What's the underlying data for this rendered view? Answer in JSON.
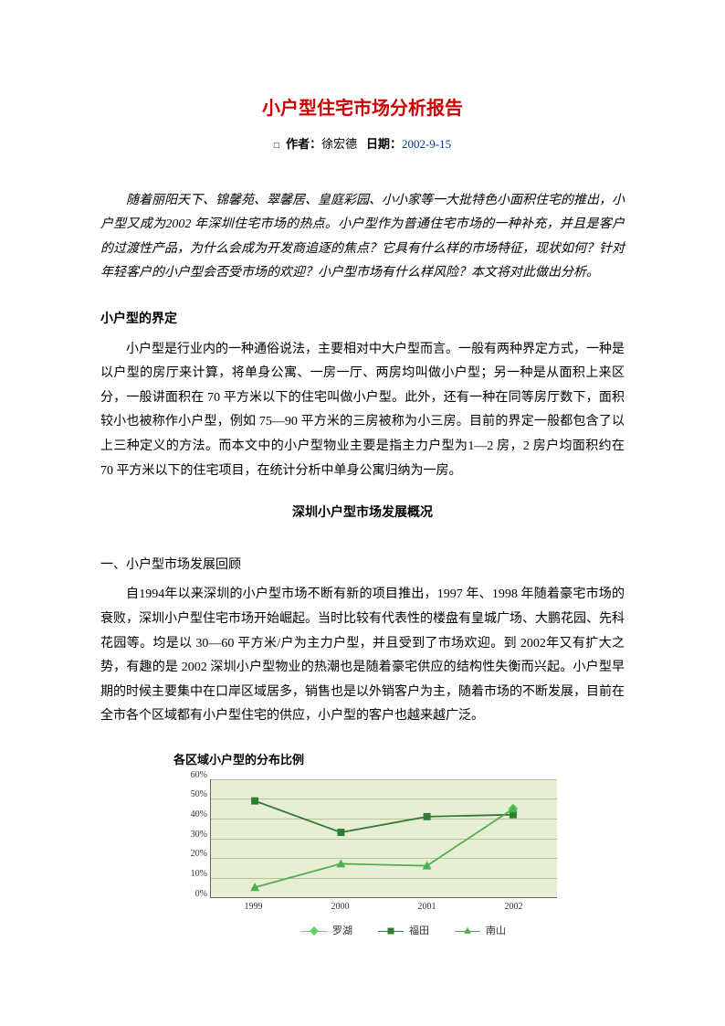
{
  "title": "小户型住宅市场分析报告",
  "byline": {
    "bullet": "□",
    "author_label": "作者：",
    "author": "徐宏德",
    "date_label": "日期：",
    "date": "2002-9-15"
  },
  "intro": "随着丽阳天下、锦馨苑、翠馨居、皇庭彩园、小小家等一大批特色小面积住宅的推出，小户型又成为2002 年深圳住宅市场的热点。小户型作为普通住宅市场的一种补充，并且是客户的过渡性产品，为什么会成为开发商追逐的焦点？它具有什么样的市场特征，现状如何？针对年轻客户的小户型会否受市场的欢迎？小户型市场有什么样风险？本文将对此做出分析。",
  "h1": "小户型的界定",
  "p1": "小户型是行业内的一种通俗说法，主要相对中大户型而言。一般有两种界定方式，一种是以户型的房厅来计算，将单身公寓、一房一厅、两房均叫做小户型；另一种是从面积上来区分，一般讲面积在 70 平方米以下的住宅叫做小户型。此外，还有一种在同等房厅数下，面积较小也被称作小户型，例如 75—90 平方米的三房被称为小三房。目前的界定一般都包含了以上三种定义的方法。而本文中的小户型物业主要是指主力户型为1—2 房，2 房户均面积约在 70 平方米以下的住宅项目，在统计分析中单身公寓归纳为一房。",
  "center_heading": "深圳小户型市场发展概况",
  "h2": "一、小户型市场发展回顾",
  "p2": "自1994年以来深圳的小户型市场不断有新的项目推出，1997 年、1998 年随着豪宅市场的衰败，深圳小户型住宅市场开始崛起。当时比较有代表性的楼盘有皇城广场、大鹏花园、先科花园等。均是以 30—60 平方米/户为主力户型，并且受到了市场欢迎。到 2002年又有扩大之势，有趣的是 2002 深圳小户型物业的热潮也是随着豪宅供应的结构性失衡而兴起。小户型早期的时候主要集中在口岸区域居多，销售也是以外销客户为主，随着市场的不断发展，目前在全市各个区域都有小户型住宅的供应，小户型的客户也越来越广泛。",
  "chart": {
    "title": "各区域小户型的分布比例",
    "type": "line",
    "plot_bg": "#e8eed4",
    "grid_color": "#b8c29a",
    "x_categories": [
      "1999",
      "2000",
      "2001",
      "2002"
    ],
    "y": {
      "min": 0,
      "max": 60,
      "step": 10,
      "suffix": "%"
    },
    "series": [
      {
        "name": "罗湖",
        "color": "#5fd35f",
        "marker": "diamond",
        "values": [
          null,
          null,
          null,
          45
        ]
      },
      {
        "name": "福田",
        "color": "#2e7d32",
        "marker": "square",
        "values": [
          49,
          33,
          41,
          42
        ]
      },
      {
        "name": "南山",
        "color": "#4caf50",
        "marker": "triangle",
        "values": [
          5,
          17,
          16,
          45
        ]
      }
    ],
    "legend_labels": {
      "luohu": "罗湖",
      "futian": "福田",
      "nanshan": "南山"
    },
    "colors": {
      "luohu": "#5fd35f",
      "futian": "#2e7d32",
      "nanshan": "#4caf50"
    }
  }
}
